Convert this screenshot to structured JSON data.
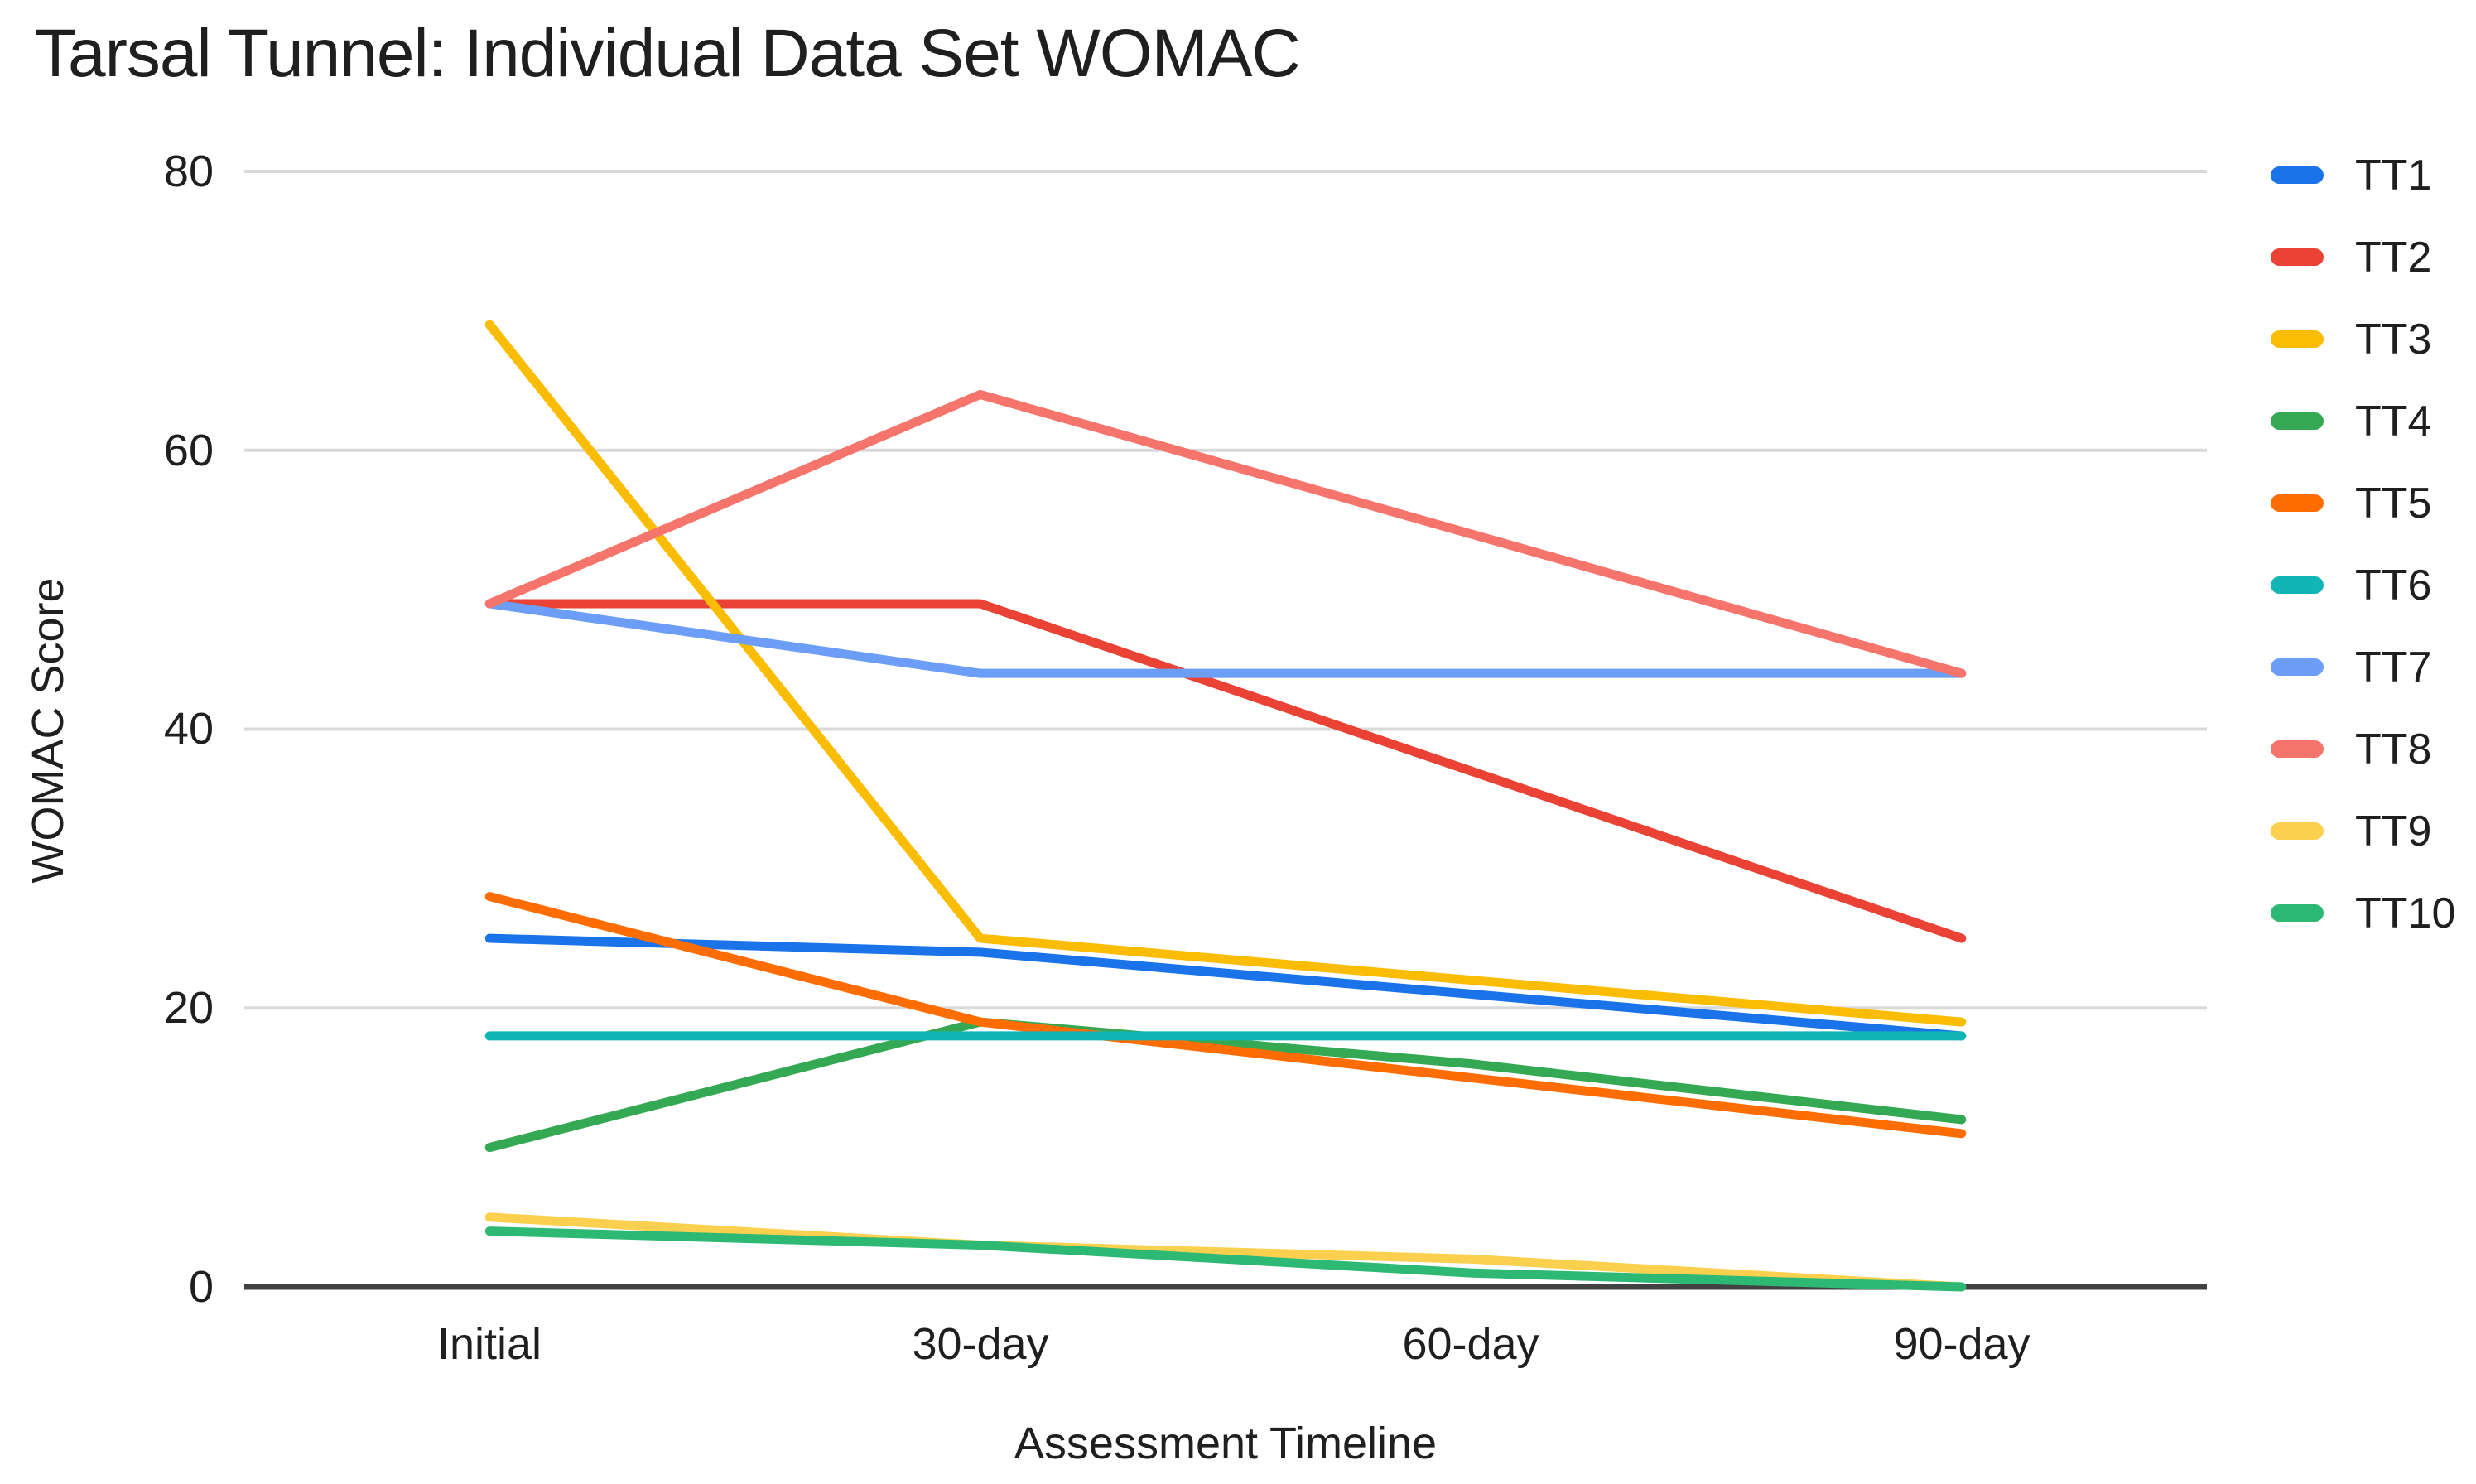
{
  "chart_data": {
    "type": "line",
    "title": "Tarsal Tunnel: Individual Data Set WOMAC",
    "xlabel": "Assessment Timeline",
    "ylabel": "WOMAC Score",
    "categories": [
      "Initial",
      "30-day",
      "60-day",
      "90-day"
    ],
    "ylim": [
      0,
      80
    ],
    "yticks_top_to_bottom": [
      "80",
      "60",
      "40",
      "20",
      "0"
    ],
    "grid": true,
    "legend_position": "right",
    "axis_color": "#424242",
    "gridline_color": "#d9d9d9",
    "series": [
      {
        "name": "TT1",
        "color": "#1a73e8",
        "values": [
          25,
          24,
          21,
          18
        ]
      },
      {
        "name": "TT2",
        "color": "#ea4335",
        "values": [
          49,
          49,
          37,
          25
        ]
      },
      {
        "name": "TT3",
        "color": "#fbbc04",
        "values": [
          69,
          25,
          22,
          19
        ]
      },
      {
        "name": "TT4",
        "color": "#34a853",
        "values": [
          10,
          19,
          16,
          12
        ]
      },
      {
        "name": "TT5",
        "color": "#ff6d01",
        "values": [
          28,
          19,
          15,
          11
        ]
      },
      {
        "name": "TT6",
        "color": "#12b5b5",
        "values": [
          18,
          18,
          18,
          18
        ]
      },
      {
        "name": "TT7",
        "color": "#6d9ef7",
        "values": [
          49,
          44,
          44,
          44
        ]
      },
      {
        "name": "TT8",
        "color": "#f5756c",
        "values": [
          49,
          64,
          54,
          44
        ]
      },
      {
        "name": "TT9",
        "color": "#fcd04f",
        "values": [
          5,
          3,
          2,
          0
        ]
      },
      {
        "name": "TT10",
        "color": "#2db873",
        "values": [
          4,
          3,
          1,
          0
        ]
      }
    ]
  }
}
